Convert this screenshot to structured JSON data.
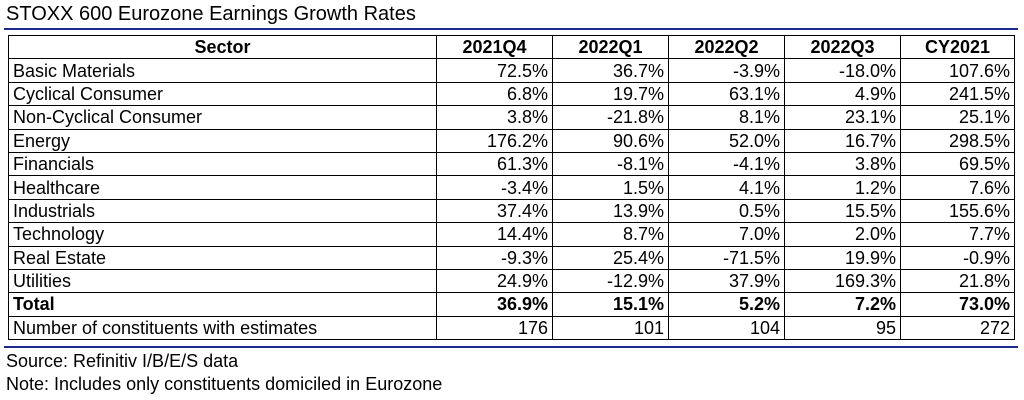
{
  "title": "STOXX 600 Eurozone Earnings Growth Rates",
  "table": {
    "headers": [
      "Sector",
      "2021Q4",
      "2022Q1",
      "2022Q2",
      "2022Q3",
      "CY2021"
    ],
    "rows": [
      [
        "Basic Materials",
        "72.5%",
        "36.7%",
        "-3.9%",
        "-18.0%",
        "107.6%"
      ],
      [
        "Cyclical Consumer",
        "6.8%",
        "19.7%",
        "63.1%",
        "4.9%",
        "241.5%"
      ],
      [
        "Non-Cyclical Consumer",
        "3.8%",
        "-21.8%",
        "8.1%",
        "23.1%",
        "25.1%"
      ],
      [
        "Energy",
        "176.2%",
        "90.6%",
        "52.0%",
        "16.7%",
        "298.5%"
      ],
      [
        "Financials",
        "61.3%",
        "-8.1%",
        "-4.1%",
        "3.8%",
        "69.5%"
      ],
      [
        "Healthcare",
        "-3.4%",
        "1.5%",
        "4.1%",
        "1.2%",
        "7.6%"
      ],
      [
        "Industrials",
        "37.4%",
        "13.9%",
        "0.5%",
        "15.5%",
        "155.6%"
      ],
      [
        "Technology",
        "14.4%",
        "8.7%",
        "7.0%",
        "2.0%",
        "7.7%"
      ],
      [
        "Real Estate",
        "-9.3%",
        "25.4%",
        "-71.5%",
        "19.9%",
        "-0.9%"
      ],
      [
        "Utilities",
        "24.9%",
        "-12.9%",
        "37.9%",
        "169.3%",
        "21.8%"
      ]
    ],
    "total": [
      "Total",
      "36.9%",
      "15.1%",
      "5.2%",
      "7.2%",
      "73.0%"
    ],
    "constituents": [
      "Number of constituents with estimates",
      "176",
      "101",
      "104",
      "95",
      "272"
    ]
  },
  "notes": {
    "source": "Source: Refinitiv I/B/E/S data",
    "note": "Note: Includes only constituents domiciled in Eurozone"
  },
  "colors": {
    "rule": "#1c2a8c"
  }
}
